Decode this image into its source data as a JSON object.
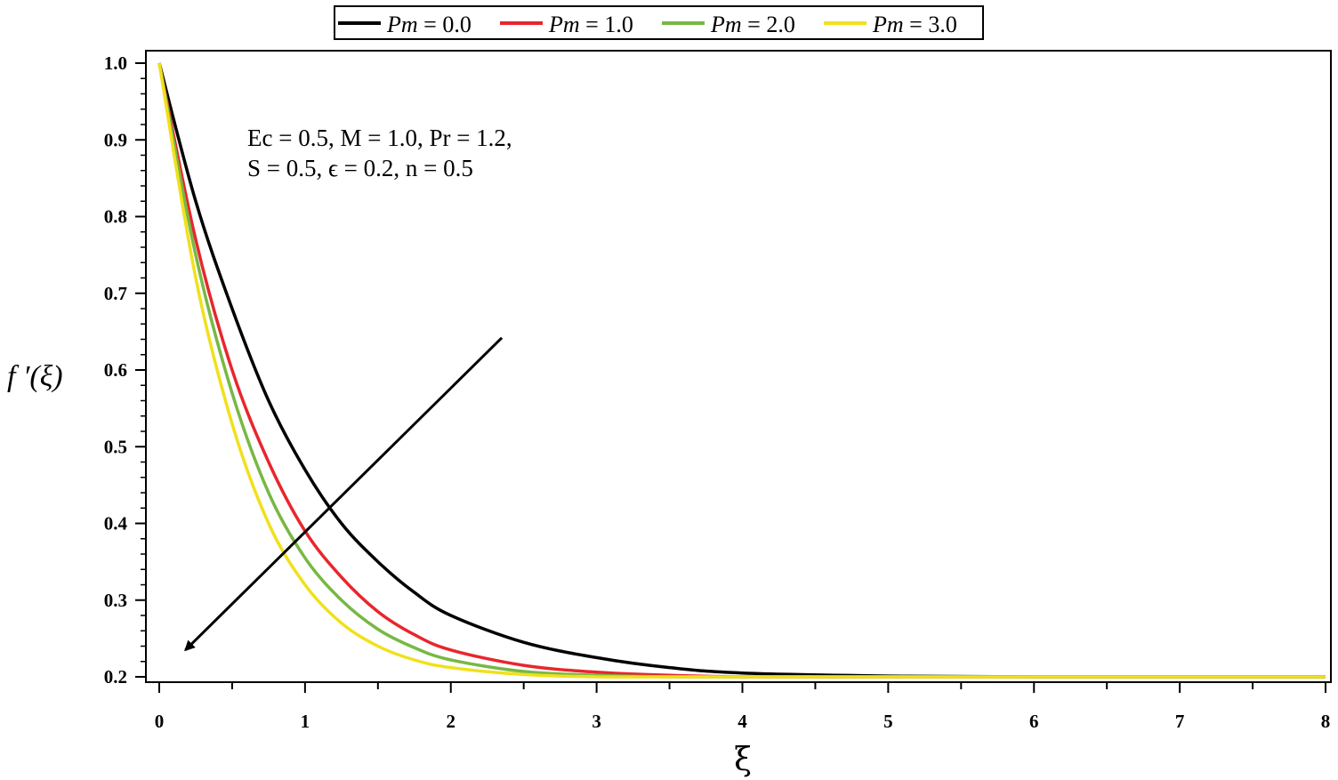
{
  "chart_data": {
    "type": "line",
    "title": "",
    "xlabel": "ξ",
    "ylabel": "f ′(ξ)",
    "xlim": [
      0,
      8
    ],
    "ylim": [
      0.2,
      1.0
    ],
    "x_ticks": [
      "0",
      "1",
      "2",
      "3",
      "4",
      "5",
      "6",
      "7",
      "8"
    ],
    "y_ticks": [
      "0.2",
      "0.3",
      "0.4",
      "0.5",
      "0.6",
      "0.7",
      "0.8",
      "0.9",
      "1.0"
    ],
    "grid": false,
    "legend_position": "top-center",
    "annotation_lines": [
      "Ec = 0.5, M = 1.0, Pr = 1.2,",
      "S = 0.5, ϵ = 0.2, n = 0.5"
    ],
    "arrow": {
      "from": [
        2.35,
        0.642
      ],
      "to": [
        0.18,
        0.235
      ]
    },
    "series": [
      {
        "name": "Pm = 0.0",
        "color": "#000000",
        "x": [
          0,
          0.25,
          0.5,
          0.75,
          1.0,
          1.25,
          1.5,
          1.75,
          2.0,
          2.5,
          3.0,
          3.5,
          4.0,
          5.0,
          6.0,
          7.0,
          8.0
        ],
        "y": [
          1.0,
          0.82,
          0.68,
          0.56,
          0.47,
          0.4,
          0.35,
          0.31,
          0.28,
          0.245,
          0.225,
          0.212,
          0.205,
          0.201,
          0.2,
          0.2,
          0.2
        ]
      },
      {
        "name": "Pm = 1.0",
        "color": "#e8262d",
        "x": [
          0,
          0.25,
          0.5,
          0.75,
          1.0,
          1.25,
          1.5,
          1.75,
          2.0,
          2.5,
          3.0,
          3.5,
          4.0,
          5.0,
          6.0,
          7.0,
          8.0
        ],
        "y": [
          1.0,
          0.77,
          0.6,
          0.48,
          0.39,
          0.33,
          0.285,
          0.255,
          0.235,
          0.215,
          0.206,
          0.202,
          0.2,
          0.2,
          0.2,
          0.2,
          0.2
        ]
      },
      {
        "name": "Pm = 2.0",
        "color": "#77b843",
        "x": [
          0,
          0.25,
          0.5,
          0.75,
          1.0,
          1.25,
          1.5,
          1.75,
          2.0,
          2.5,
          3.0,
          3.5,
          4.0,
          5.0,
          6.0,
          7.0,
          8.0
        ],
        "y": [
          1.0,
          0.75,
          0.57,
          0.44,
          0.355,
          0.3,
          0.262,
          0.238,
          0.222,
          0.207,
          0.202,
          0.2,
          0.2,
          0.2,
          0.2,
          0.2,
          0.2
        ]
      },
      {
        "name": "Pm = 3.0",
        "color": "#f1e01c",
        "x": [
          0,
          0.25,
          0.5,
          0.75,
          1.0,
          1.25,
          1.5,
          1.75,
          2.0,
          2.5,
          3.0,
          3.5,
          4.0,
          5.0,
          6.0,
          7.0,
          8.0
        ],
        "y": [
          1.0,
          0.72,
          0.53,
          0.4,
          0.32,
          0.27,
          0.24,
          0.222,
          0.212,
          0.203,
          0.2,
          0.2,
          0.2,
          0.2,
          0.2,
          0.2,
          0.2
        ]
      }
    ]
  }
}
